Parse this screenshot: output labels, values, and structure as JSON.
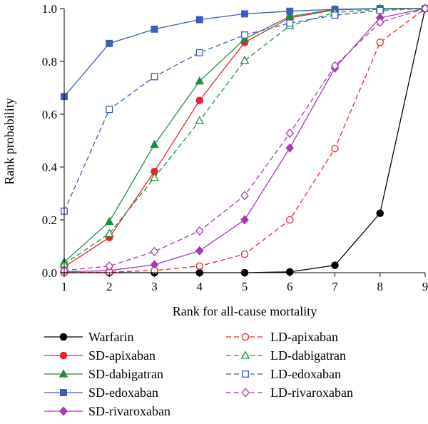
{
  "chart_data": {
    "type": "line",
    "title": "",
    "xlabel": "Rank for all-cause mortality",
    "ylabel": "Rank probability",
    "x": [
      1,
      2,
      3,
      4,
      5,
      6,
      7,
      8,
      9
    ],
    "xlim": [
      1,
      9
    ],
    "ylim": [
      0,
      1
    ],
    "x_ticks": [
      "1",
      "2",
      "3",
      "4",
      "5",
      "6",
      "7",
      "8",
      "9"
    ],
    "y_ticks": [
      "0.0",
      "0.2",
      "0.4",
      "0.6",
      "0.8",
      "1.0"
    ],
    "grid": false,
    "legend_position": "bottom",
    "series": [
      {
        "name": "Warfarin",
        "color": "#000000",
        "dashed": false,
        "marker": "circle",
        "filled": true,
        "values": [
          0.0,
          0.0,
          0.0,
          0.0,
          0.0,
          0.003,
          0.028,
          0.225,
          1.0
        ]
      },
      {
        "name": "SD-apixaban",
        "color": "#e8232a",
        "dashed": false,
        "marker": "circle",
        "filled": true,
        "values": [
          0.022,
          0.133,
          0.383,
          0.652,
          0.872,
          0.965,
          0.995,
          1.0,
          1.0
        ]
      },
      {
        "name": "SD-dabigatran",
        "color": "#1e8e3e",
        "dashed": false,
        "marker": "triangle",
        "filled": true,
        "values": [
          0.04,
          0.193,
          0.485,
          0.725,
          0.885,
          0.97,
          0.997,
          1.0,
          1.0
        ]
      },
      {
        "name": "SD-edoxaban",
        "color": "#3a5bbf",
        "dashed": false,
        "marker": "square",
        "filled": true,
        "values": [
          0.667,
          0.868,
          0.922,
          0.958,
          0.98,
          0.99,
          0.997,
          1.0,
          1.0
        ]
      },
      {
        "name": "SD-rivaroxaban",
        "color": "#a43cb0",
        "dashed": false,
        "marker": "diamond",
        "filled": true,
        "values": [
          0.003,
          0.008,
          0.03,
          0.083,
          0.2,
          0.472,
          0.775,
          0.965,
          1.0
        ]
      },
      {
        "name": "LD-apixaban",
        "color": "#e8232a",
        "dashed": true,
        "marker": "circle",
        "filled": false,
        "values": [
          0.0,
          0.002,
          0.008,
          0.025,
          0.07,
          0.2,
          0.47,
          0.872,
          1.0
        ]
      },
      {
        "name": "LD-dabigatran",
        "color": "#1e8e3e",
        "dashed": true,
        "marker": "triangle",
        "filled": false,
        "values": [
          0.032,
          0.148,
          0.36,
          0.575,
          0.803,
          0.935,
          0.985,
          0.998,
          1.0
        ]
      },
      {
        "name": "LD-edoxaban",
        "color": "#3a5bbf",
        "dashed": true,
        "marker": "square",
        "filled": false,
        "values": [
          0.233,
          0.618,
          0.742,
          0.833,
          0.9,
          0.945,
          0.975,
          0.993,
          1.0
        ]
      },
      {
        "name": "LD-rivaroxaban",
        "color": "#a43cb0",
        "dashed": true,
        "marker": "diamond",
        "filled": false,
        "values": [
          0.008,
          0.025,
          0.08,
          0.158,
          0.292,
          0.528,
          0.783,
          0.948,
          1.0
        ]
      }
    ]
  }
}
